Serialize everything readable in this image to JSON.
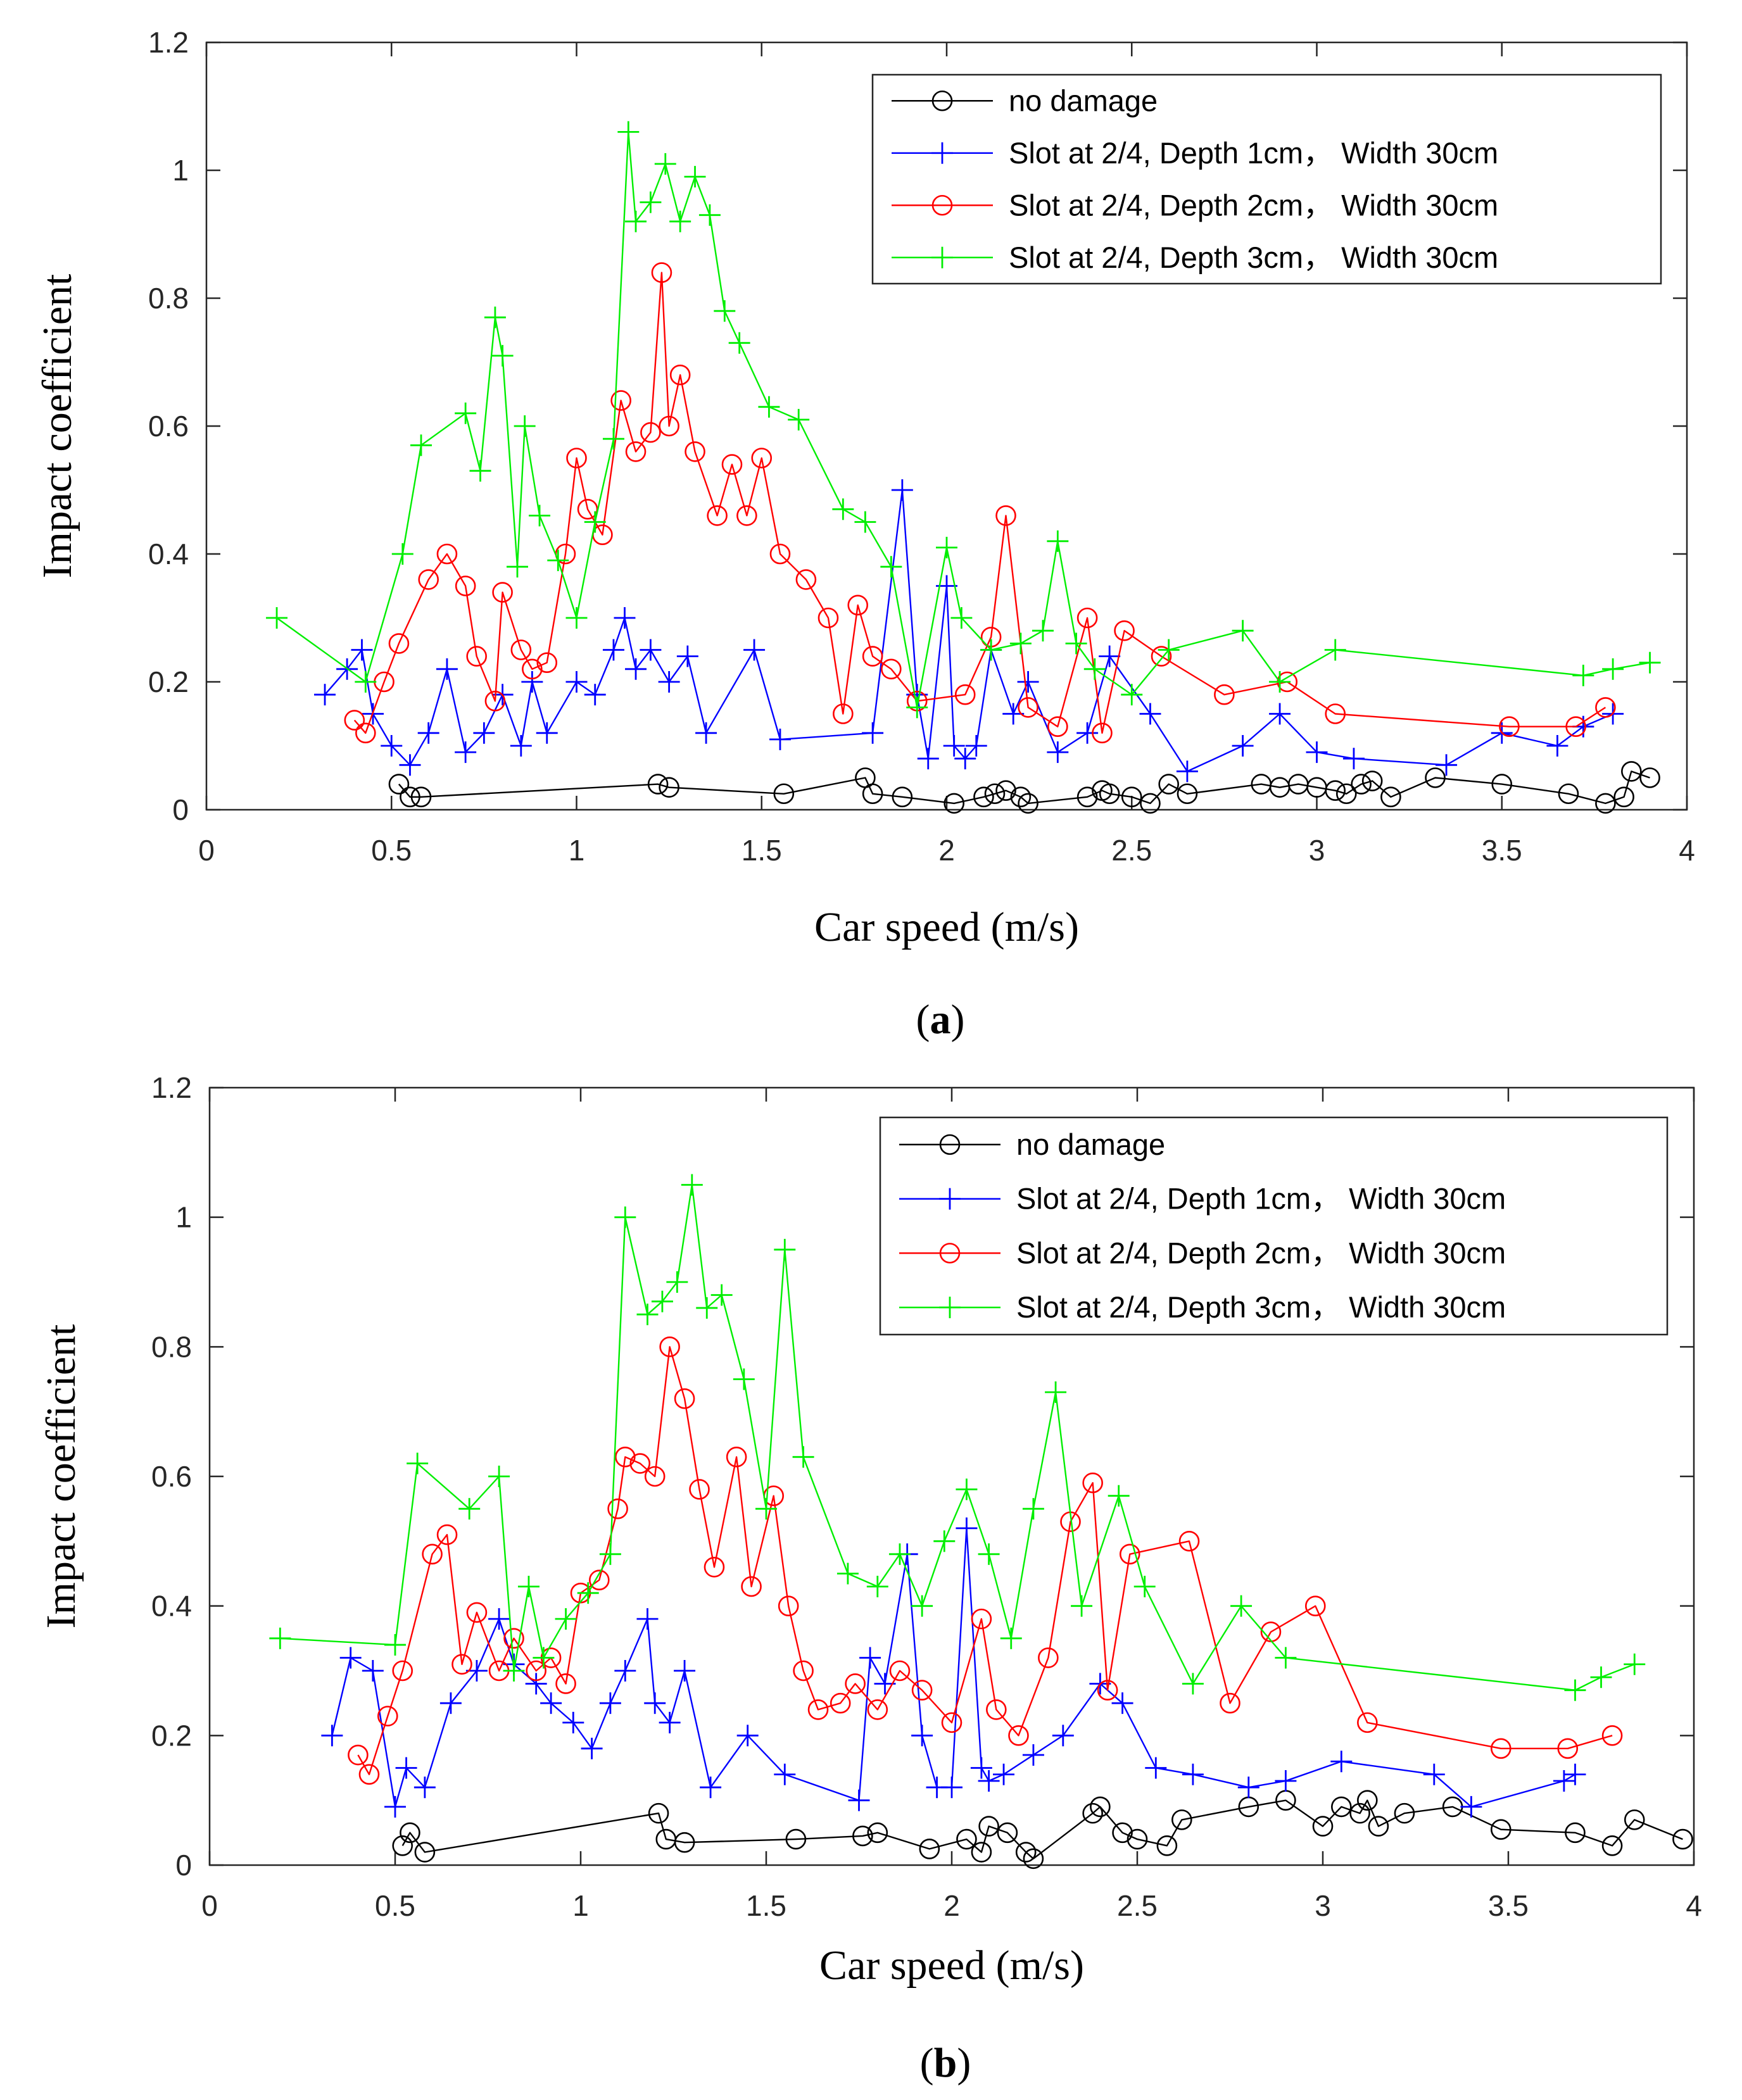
{
  "chart_data": [
    {
      "type": "line",
      "caption": {
        "open": "(",
        "letter": "a",
        "close": ")"
      },
      "xlabel": "Car speed (m/s)",
      "ylabel": "Impact coefficient",
      "xlim": [
        0,
        4
      ],
      "ylim": [
        0,
        1.2
      ],
      "xticks": [
        0,
        0.5,
        1,
        1.5,
        2,
        2.5,
        3,
        3.5,
        4
      ],
      "yticks": [
        0,
        0.2,
        0.4,
        0.6,
        0.8,
        1,
        1.2
      ],
      "grid": false,
      "legend_position": "top-right",
      "series": [
        {
          "name": "no damage",
          "color": "#000000",
          "marker": "circle",
          "x": [
            0.52,
            0.55,
            0.58,
            1.22,
            1.25,
            1.56,
            1.78,
            1.8,
            1.88,
            2.02,
            2.1,
            2.13,
            2.16,
            2.2,
            2.22,
            2.38,
            2.42,
            2.44,
            2.5,
            2.55,
            2.6,
            2.65,
            2.85,
            2.9,
            2.95,
            3.0,
            3.05,
            3.08,
            3.12,
            3.15,
            3.2,
            3.32,
            3.5,
            3.68,
            3.78,
            3.83,
            3.85,
            3.9
          ],
          "y": [
            0.04,
            0.02,
            0.02,
            0.04,
            0.035,
            0.025,
            0.05,
            0.025,
            0.02,
            0.01,
            0.02,
            0.025,
            0.03,
            0.02,
            0.01,
            0.02,
            0.03,
            0.025,
            0.02,
            0.01,
            0.04,
            0.025,
            0.04,
            0.035,
            0.04,
            0.035,
            0.03,
            0.025,
            0.04,
            0.045,
            0.02,
            0.05,
            0.04,
            0.025,
            0.01,
            0.02,
            0.06,
            0.05
          ]
        },
        {
          "name": "Slot at 2/4, Depth 1cm， Width 30cm",
          "color": "#0000ff",
          "marker": "plus",
          "x": [
            0.32,
            0.38,
            0.42,
            0.45,
            0.5,
            0.55,
            0.6,
            0.65,
            0.7,
            0.75,
            0.8,
            0.85,
            0.88,
            0.92,
            1.0,
            1.05,
            1.1,
            1.13,
            1.16,
            1.2,
            1.25,
            1.3,
            1.35,
            1.48,
            1.55,
            1.8,
            1.88,
            1.92,
            1.95,
            2.0,
            2.02,
            2.05,
            2.08,
            2.12,
            2.18,
            2.22,
            2.3,
            2.38,
            2.44,
            2.55,
            2.65,
            2.8,
            2.9,
            3.0,
            3.1,
            3.35,
            3.5,
            3.65,
            3.72,
            3.8
          ],
          "y": [
            0.18,
            0.22,
            0.25,
            0.15,
            0.1,
            0.07,
            0.12,
            0.22,
            0.09,
            0.12,
            0.18,
            0.1,
            0.2,
            0.12,
            0.2,
            0.18,
            0.25,
            0.3,
            0.22,
            0.25,
            0.2,
            0.24,
            0.12,
            0.25,
            0.11,
            0.12,
            0.5,
            0.18,
            0.08,
            0.35,
            0.1,
            0.08,
            0.1,
            0.25,
            0.15,
            0.2,
            0.09,
            0.12,
            0.24,
            0.15,
            0.06,
            0.1,
            0.15,
            0.09,
            0.08,
            0.07,
            0.12,
            0.1,
            0.13,
            0.15
          ]
        },
        {
          "name": "Slot at 2/4, Depth 2cm， Width 30cm",
          "color": "#ff0000",
          "marker": "circle",
          "x": [
            0.4,
            0.43,
            0.48,
            0.52,
            0.6,
            0.65,
            0.7,
            0.73,
            0.78,
            0.8,
            0.85,
            0.88,
            0.92,
            0.97,
            1.0,
            1.03,
            1.07,
            1.12,
            1.16,
            1.2,
            1.23,
            1.25,
            1.28,
            1.32,
            1.38,
            1.42,
            1.46,
            1.5,
            1.55,
            1.62,
            1.68,
            1.72,
            1.76,
            1.8,
            1.85,
            1.92,
            2.05,
            2.12,
            2.16,
            2.22,
            2.3,
            2.38,
            2.42,
            2.48,
            2.58,
            2.75,
            2.92,
            3.05,
            3.52,
            3.7,
            3.78
          ],
          "y": [
            0.14,
            0.12,
            0.2,
            0.26,
            0.36,
            0.4,
            0.35,
            0.24,
            0.17,
            0.34,
            0.25,
            0.22,
            0.23,
            0.4,
            0.55,
            0.47,
            0.43,
            0.64,
            0.56,
            0.59,
            0.84,
            0.6,
            0.68,
            0.56,
            0.46,
            0.54,
            0.46,
            0.55,
            0.4,
            0.36,
            0.3,
            0.15,
            0.32,
            0.24,
            0.22,
            0.17,
            0.18,
            0.27,
            0.46,
            0.16,
            0.13,
            0.3,
            0.12,
            0.28,
            0.24,
            0.18,
            0.2,
            0.15,
            0.13,
            0.13,
            0.16
          ]
        },
        {
          "name": "Slot at 2/4, Depth 3cm， Width 30cm",
          "color": "#00ee00",
          "marker": "plus",
          "x": [
            0.19,
            0.43,
            0.53,
            0.58,
            0.7,
            0.74,
            0.78,
            0.8,
            0.84,
            0.86,
            0.9,
            0.95,
            1.0,
            1.05,
            1.1,
            1.14,
            1.16,
            1.2,
            1.24,
            1.28,
            1.32,
            1.36,
            1.4,
            1.44,
            1.52,
            1.6,
            1.72,
            1.78,
            1.85,
            1.92,
            2.0,
            2.04,
            2.12,
            2.2,
            2.26,
            2.3,
            2.35,
            2.4,
            2.5,
            2.6,
            2.8,
            2.9,
            3.05,
            3.72,
            3.8,
            3.9
          ],
          "y": [
            0.3,
            0.2,
            0.4,
            0.57,
            0.62,
            0.53,
            0.77,
            0.71,
            0.38,
            0.6,
            0.46,
            0.39,
            0.3,
            0.45,
            0.58,
            1.06,
            0.92,
            0.95,
            1.01,
            0.92,
            0.99,
            0.93,
            0.78,
            0.73,
            0.63,
            0.61,
            0.47,
            0.45,
            0.38,
            0.16,
            0.41,
            0.3,
            0.25,
            0.26,
            0.28,
            0.42,
            0.26,
            0.22,
            0.18,
            0.25,
            0.28,
            0.2,
            0.25,
            0.21,
            0.22,
            0.23
          ]
        }
      ]
    },
    {
      "type": "line",
      "caption": {
        "open": "(",
        "letter": "b",
        "close": ")"
      },
      "xlabel": "Car speed (m/s)",
      "ylabel": "Impact coefficient",
      "xlim": [
        0,
        4
      ],
      "ylim": [
        0,
        1.2
      ],
      "xticks": [
        0,
        0.5,
        1,
        1.5,
        2,
        2.5,
        3,
        3.5,
        4
      ],
      "yticks": [
        0,
        0.2,
        0.4,
        0.6,
        0.8,
        1,
        1.2
      ],
      "grid": false,
      "legend_position": "top-right",
      "series": [
        {
          "name": "no damage",
          "color": "#000000",
          "marker": "circle",
          "x": [
            0.52,
            0.54,
            0.58,
            1.21,
            1.23,
            1.28,
            1.58,
            1.76,
            1.8,
            1.94,
            2.04,
            2.08,
            2.1,
            2.15,
            2.2,
            2.22,
            2.38,
            2.4,
            2.46,
            2.5,
            2.58,
            2.62,
            2.8,
            2.9,
            3.0,
            3.05,
            3.1,
            3.12,
            3.15,
            3.22,
            3.35,
            3.48,
            3.68,
            3.78,
            3.84,
            3.97
          ],
          "y": [
            0.03,
            0.05,
            0.02,
            0.08,
            0.04,
            0.035,
            0.04,
            0.045,
            0.05,
            0.025,
            0.04,
            0.02,
            0.06,
            0.05,
            0.02,
            0.01,
            0.08,
            0.09,
            0.05,
            0.04,
            0.03,
            0.07,
            0.09,
            0.1,
            0.06,
            0.09,
            0.08,
            0.1,
            0.06,
            0.08,
            0.09,
            0.055,
            0.05,
            0.03,
            0.07,
            0.04
          ]
        },
        {
          "name": "Slot at 2/4, Depth 1cm， Width 30cm",
          "color": "#0000ff",
          "marker": "plus",
          "x": [
            0.33,
            0.38,
            0.44,
            0.5,
            0.53,
            0.58,
            0.65,
            0.72,
            0.78,
            0.82,
            0.88,
            0.92,
            0.98,
            1.03,
            1.08,
            1.12,
            1.18,
            1.2,
            1.24,
            1.28,
            1.35,
            1.45,
            1.55,
            1.75,
            1.78,
            1.82,
            1.88,
            1.92,
            1.96,
            2.0,
            2.04,
            2.08,
            2.1,
            2.14,
            2.22,
            2.3,
            2.4,
            2.46,
            2.55,
            2.65,
            2.8,
            2.9,
            3.05,
            3.3,
            3.4,
            3.65,
            3.68
          ],
          "y": [
            0.2,
            0.32,
            0.3,
            0.09,
            0.15,
            0.12,
            0.25,
            0.3,
            0.38,
            0.31,
            0.28,
            0.25,
            0.22,
            0.18,
            0.25,
            0.3,
            0.38,
            0.25,
            0.22,
            0.3,
            0.12,
            0.2,
            0.14,
            0.1,
            0.32,
            0.28,
            0.48,
            0.2,
            0.12,
            0.12,
            0.52,
            0.15,
            0.13,
            0.14,
            0.17,
            0.2,
            0.28,
            0.25,
            0.15,
            0.14,
            0.12,
            0.13,
            0.16,
            0.14,
            0.09,
            0.13,
            0.14
          ]
        },
        {
          "name": "Slot at 2/4, Depth 2cm， Width 30cm",
          "color": "#ff0000",
          "marker": "circle",
          "x": [
            0.4,
            0.43,
            0.48,
            0.52,
            0.6,
            0.64,
            0.68,
            0.72,
            0.78,
            0.82,
            0.88,
            0.92,
            0.96,
            1.0,
            1.05,
            1.1,
            1.12,
            1.16,
            1.2,
            1.24,
            1.28,
            1.32,
            1.36,
            1.42,
            1.46,
            1.52,
            1.56,
            1.6,
            1.64,
            1.7,
            1.74,
            1.8,
            1.86,
            1.92,
            2.0,
            2.08,
            2.12,
            2.18,
            2.26,
            2.32,
            2.38,
            2.42,
            2.48,
            2.64,
            2.75,
            2.86,
            2.98,
            3.12,
            3.48,
            3.66,
            3.78
          ],
          "y": [
            0.17,
            0.14,
            0.23,
            0.3,
            0.48,
            0.51,
            0.31,
            0.39,
            0.3,
            0.35,
            0.3,
            0.32,
            0.28,
            0.42,
            0.44,
            0.55,
            0.63,
            0.62,
            0.6,
            0.8,
            0.72,
            0.58,
            0.46,
            0.63,
            0.43,
            0.57,
            0.4,
            0.3,
            0.24,
            0.25,
            0.28,
            0.24,
            0.3,
            0.27,
            0.22,
            0.38,
            0.24,
            0.2,
            0.32,
            0.53,
            0.59,
            0.27,
            0.48,
            0.5,
            0.25,
            0.36,
            0.4,
            0.22,
            0.18,
            0.18,
            0.2
          ]
        },
        {
          "name": "Slot at 2/4, Depth 3cm， Width 30cm",
          "color": "#00ee00",
          "marker": "plus",
          "x": [
            0.19,
            0.5,
            0.56,
            0.7,
            0.78,
            0.82,
            0.86,
            0.9,
            0.96,
            1.02,
            1.08,
            1.12,
            1.18,
            1.22,
            1.26,
            1.3,
            1.34,
            1.38,
            1.44,
            1.5,
            1.55,
            1.6,
            1.72,
            1.8,
            1.86,
            1.92,
            1.98,
            2.04,
            2.1,
            2.16,
            2.22,
            2.28,
            2.35,
            2.45,
            2.52,
            2.65,
            2.78,
            2.9,
            3.68,
            3.75,
            3.84
          ],
          "y": [
            0.35,
            0.34,
            0.62,
            0.55,
            0.6,
            0.3,
            0.43,
            0.32,
            0.38,
            0.42,
            0.48,
            1.0,
            0.85,
            0.87,
            0.9,
            1.05,
            0.86,
            0.88,
            0.75,
            0.55,
            0.95,
            0.63,
            0.45,
            0.43,
            0.48,
            0.4,
            0.5,
            0.58,
            0.48,
            0.35,
            0.55,
            0.73,
            0.4,
            0.57,
            0.43,
            0.28,
            0.4,
            0.32,
            0.27,
            0.29,
            0.31
          ]
        }
      ]
    }
  ]
}
